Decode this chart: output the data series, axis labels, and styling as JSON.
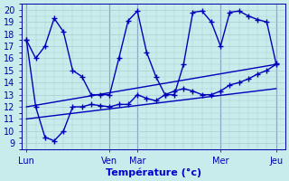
{
  "title": "Température (°c)",
  "background_color": "#c8ecec",
  "line_color": "#0000bb",
  "grid_color": "#aacccc",
  "x_ticks_labels": [
    "Lun",
    "Ven",
    "Mar",
    "Mer",
    "Jeu"
  ],
  "x_ticks_pos": [
    0,
    9,
    12,
    21,
    27
  ],
  "ylim": [
    8.5,
    20.5
  ],
  "yticks": [
    9,
    10,
    11,
    12,
    13,
    14,
    15,
    16,
    17,
    18,
    19,
    20
  ],
  "xlim": [
    -0.5,
    28
  ],
  "series": [
    {
      "x": [
        0,
        1,
        2,
        3,
        4,
        5,
        6,
        7,
        8,
        9,
        10,
        11,
        12,
        13,
        14,
        15,
        16,
        17,
        18,
        19,
        20,
        21,
        22,
        23,
        24,
        25,
        26,
        27
      ],
      "y": [
        17.5,
        16.0,
        17.0,
        19.3,
        18.2,
        15.0,
        14.5,
        13.0,
        13.0,
        13.0,
        16.0,
        19.1,
        19.9,
        16.5,
        14.5,
        13.0,
        13.0,
        15.5,
        19.8,
        19.9,
        19.0,
        17.0,
        19.8,
        19.9,
        19.5,
        19.2,
        19.0,
        15.6
      ],
      "linestyle": "-",
      "marker": true
    },
    {
      "x": [
        0,
        1,
        2,
        3,
        4,
        5,
        6,
        7,
        8,
        9,
        10,
        11,
        12,
        13,
        14,
        15,
        16,
        17,
        18,
        19,
        20,
        21,
        22,
        23,
        24,
        25,
        26,
        27
      ],
      "y": [
        17.5,
        12.0,
        9.5,
        9.2,
        10.0,
        12.0,
        12.0,
        12.2,
        12.1,
        12.0,
        12.2,
        12.2,
        13.0,
        12.7,
        12.5,
        13.0,
        13.3,
        13.5,
        13.3,
        13.0,
        13.0,
        13.3,
        13.8,
        14.0,
        14.3,
        14.7,
        15.0,
        15.5
      ],
      "linestyle": "-",
      "marker": true
    },
    {
      "x": [
        0,
        27
      ],
      "y": [
        12.0,
        15.5
      ],
      "linestyle": "-",
      "marker": false
    },
    {
      "x": [
        0,
        27
      ],
      "y": [
        11.0,
        13.5
      ],
      "linestyle": "-",
      "marker": false
    }
  ]
}
